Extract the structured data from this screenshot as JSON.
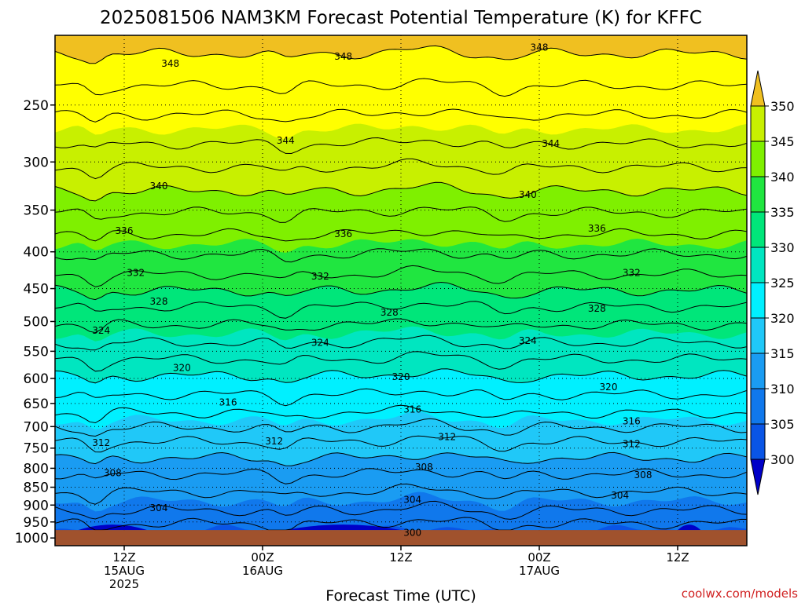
{
  "chart_data": {
    "type": "heatmap",
    "title": "2025081506 NAM3KM Forecast Potential Temperature (K) for KFFC",
    "xlabel": "Forecast Time (UTC)",
    "ylabel": "",
    "credit": "coolwx.com/models",
    "x_ticks": [
      {
        "line1": "12Z",
        "line2": "15AUG",
        "line3": "2025",
        "hour": 6
      },
      {
        "line1": "00Z",
        "line2": "16AUG",
        "line3": "",
        "hour": 18
      },
      {
        "line1": "12Z",
        "line2": "",
        "line3": "",
        "hour": 30
      },
      {
        "line1": "00Z",
        "line2": "17AUG",
        "line3": "",
        "hour": 42
      },
      {
        "line1": "12Z",
        "line2": "",
        "line3": "",
        "hour": 54
      }
    ],
    "x_range_hours": [
      0,
      60
    ],
    "y_axis": "pressure (hPa), log scale, decreasing upward",
    "y_range": [
      1025,
      200
    ],
    "y_ticks": [
      250,
      300,
      350,
      400,
      450,
      500,
      550,
      600,
      650,
      700,
      750,
      800,
      850,
      900,
      950,
      1000
    ],
    "grid": true,
    "colorbar": {
      "levels": [
        300,
        305,
        310,
        315,
        320,
        325,
        330,
        335,
        340,
        345,
        350
      ],
      "colors": [
        "#0000c8",
        "#0a55e6",
        "#1078ec",
        "#1a9cf2",
        "#20c8f8",
        "#00f0ff",
        "#00e6c0",
        "#00e67a",
        "#20e640",
        "#7ff000",
        "#c8f000",
        "#ffff00",
        "#f0c020"
      ]
    },
    "contour_labels": [
      {
        "value": 348,
        "hour": 10,
        "p": 219
      },
      {
        "value": 348,
        "hour": 25,
        "p": 214
      },
      {
        "value": 348,
        "hour": 42,
        "p": 208
      },
      {
        "value": 344,
        "hour": 20,
        "p": 280
      },
      {
        "value": 344,
        "hour": 43,
        "p": 283
      },
      {
        "value": 340,
        "hour": 9,
        "p": 324
      },
      {
        "value": 340,
        "hour": 41,
        "p": 333
      },
      {
        "value": 336,
        "hour": 6,
        "p": 374
      },
      {
        "value": 336,
        "hour": 25,
        "p": 378
      },
      {
        "value": 336,
        "hour": 47,
        "p": 371
      },
      {
        "value": 332,
        "hour": 7,
        "p": 428
      },
      {
        "value": 332,
        "hour": 23,
        "p": 433
      },
      {
        "value": 332,
        "hour": 50,
        "p": 428
      },
      {
        "value": 328,
        "hour": 9,
        "p": 469
      },
      {
        "value": 328,
        "hour": 29,
        "p": 486
      },
      {
        "value": 328,
        "hour": 47,
        "p": 480
      },
      {
        "value": 324,
        "hour": 4,
        "p": 515
      },
      {
        "value": 324,
        "hour": 23,
        "p": 535
      },
      {
        "value": 324,
        "hour": 41,
        "p": 532
      },
      {
        "value": 320,
        "hour": 11,
        "p": 580
      },
      {
        "value": 320,
        "hour": 30,
        "p": 597
      },
      {
        "value": 320,
        "hour": 48,
        "p": 617
      },
      {
        "value": 316,
        "hour": 15,
        "p": 648
      },
      {
        "value": 316,
        "hour": 31,
        "p": 663
      },
      {
        "value": 316,
        "hour": 50,
        "p": 688
      },
      {
        "value": 312,
        "hour": 4,
        "p": 737
      },
      {
        "value": 312,
        "hour": 19,
        "p": 734
      },
      {
        "value": 312,
        "hour": 34,
        "p": 724
      },
      {
        "value": 312,
        "hour": 50,
        "p": 740
      },
      {
        "value": 308,
        "hour": 5,
        "p": 812
      },
      {
        "value": 308,
        "hour": 32,
        "p": 797
      },
      {
        "value": 308,
        "hour": 51,
        "p": 817
      },
      {
        "value": 304,
        "hour": 9,
        "p": 909
      },
      {
        "value": 304,
        "hour": 31,
        "p": 885
      },
      {
        "value": 304,
        "hour": 49,
        "p": 873
      },
      {
        "value": 300,
        "hour": 31,
        "p": 983
      }
    ]
  }
}
